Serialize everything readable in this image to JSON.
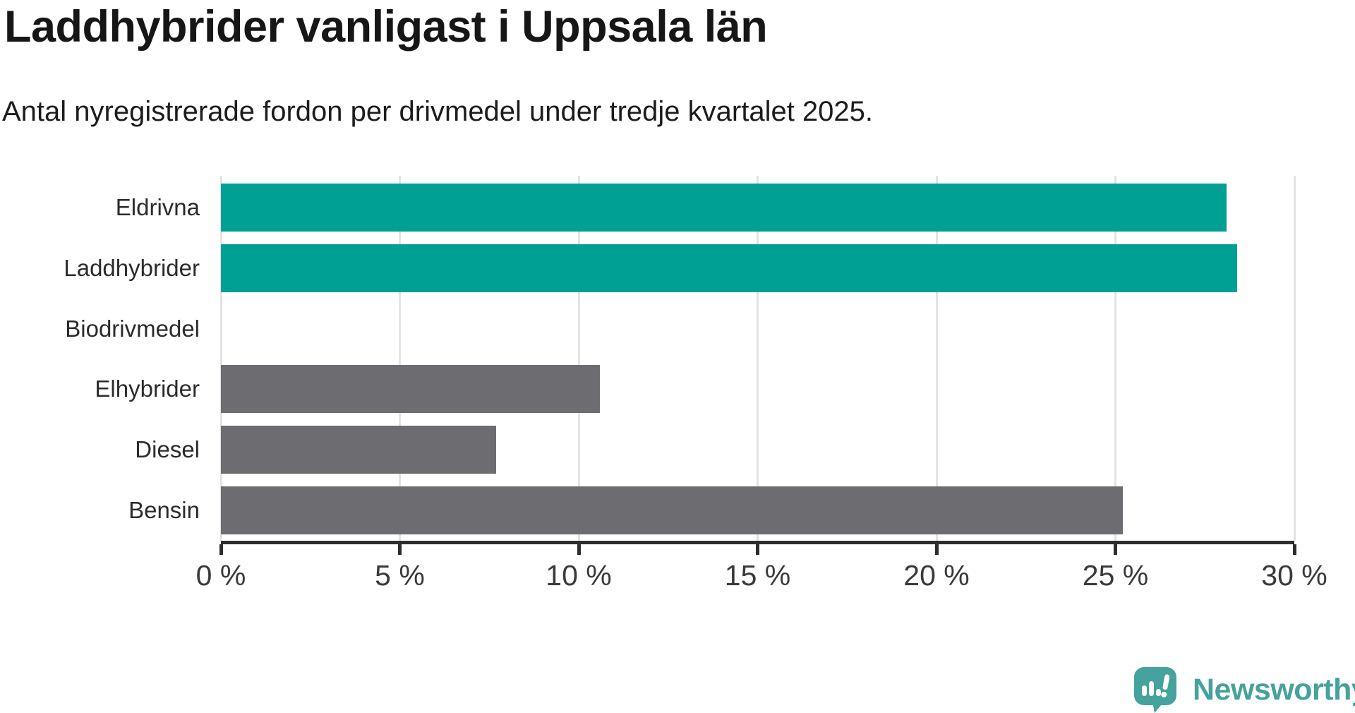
{
  "title": "Laddhybrider vanligast i Uppsala län",
  "subtitle": "Antal nyregistrerade fordon per drivmedel under tredje kvartalet 2025.",
  "chart_data": {
    "type": "bar",
    "orientation": "horizontal",
    "title": "Laddhybrider vanligast i Uppsala län",
    "subtitle": "Antal nyregistrerade fordon per drivmedel under tredje kvartalet 2025.",
    "categories": [
      "Eldrivna",
      "Laddhybrider",
      "Biodrivmedel",
      "Elhybrider",
      "Diesel",
      "Bensin"
    ],
    "values": [
      28.1,
      28.4,
      0,
      10.6,
      7.7,
      25.2
    ],
    "unit": "%",
    "xlabel": "",
    "ylabel": "",
    "xlim": [
      0,
      30
    ],
    "x_tick_values": [
      0,
      5,
      10,
      15,
      20,
      25,
      30
    ],
    "x_tick_labels": [
      "0 %",
      "5 %",
      "10 %",
      "15 %",
      "20 %",
      "25 %",
      "30 %"
    ],
    "grid": "vertical-gridlines-behind-bars",
    "legend": "none",
    "value_labels": "none",
    "bar_colors": [
      "#00A094",
      "#00A094",
      "#6C6C71",
      "#6C6C71",
      "#6C6C71",
      "#6C6C71"
    ],
    "highlight_color": "#00A094",
    "default_color": "#6C6C71"
  },
  "colors": {
    "background": "#ffffff",
    "accent_teal": "#00A094",
    "bar_gray": "#6C6C71",
    "gridline": "#e3e3e3",
    "axis": "#2d2d2d",
    "title_text": "#161616",
    "subtitle_text": "#1c1c1c",
    "category_label": "#2b2b2b",
    "tick_label": "#3a3a3a",
    "brand_teal": "#45A29C"
  },
  "footer": {
    "brand": "Newsworthy",
    "icon": "newsworthy-speech-bubble-bar-chart-icon"
  }
}
